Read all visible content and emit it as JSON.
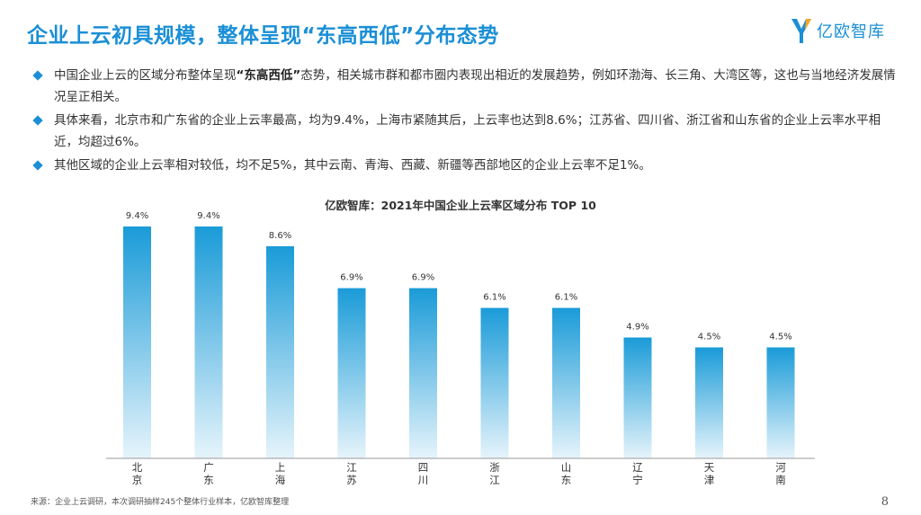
{
  "header": {
    "title": "企业上云初具规模，整体呈现“东高西低”分布态势",
    "logo_text": "亿欧智库"
  },
  "bullets": [
    {
      "pre": "中国企业上云的区域分布整体呈现",
      "bold": "“东高西低”",
      "post": "态势，相关城市群和都市圈内表现出相近的发展趋势，例如环渤海、长三角、大湾区等，这也与当地经济发展情况呈正相关。"
    },
    {
      "pre": "具体来看，北京市和广东省的企业上云率最高，均为9.4%，上海市紧随其后，上云率也达到8.6%；江苏省、四川省、浙江省和山东省的企业上云率水平相近，均超过6%。",
      "bold": "",
      "post": ""
    },
    {
      "pre": "其他区域的企业上云率相对较低，均不足5%，其中云南、青海、西藏、新疆等西部地区的企业上云率不足1%。",
      "bold": "",
      "post": ""
    }
  ],
  "chart_data": {
    "type": "bar",
    "title": "亿欧智库：2021年中国企业上云率区域分布 TOP 10",
    "categories": [
      "北京",
      "广东",
      "上海",
      "江苏",
      "四川",
      "浙江",
      "山东",
      "辽宁",
      "天津",
      "河南"
    ],
    "values": [
      9.4,
      9.4,
      8.6,
      6.9,
      6.9,
      6.1,
      6.1,
      4.9,
      4.5,
      4.5
    ],
    "value_labels": [
      "9.4%",
      "9.4%",
      "8.6%",
      "6.9%",
      "6.9%",
      "6.1%",
      "6.1%",
      "4.9%",
      "4.5%",
      "4.5%"
    ],
    "unit": "%",
    "ylim": [
      0,
      9.4
    ],
    "bar_color_top": "#1a9bd8",
    "bar_color_bottom": "#e6f4fb",
    "grid": false,
    "legend": "none"
  },
  "footer": {
    "source": "来源：企业上云调研，本次调研抽样245个整体行业样本，亿欧智库整理",
    "page": "8"
  },
  "colors": {
    "accent": "#1a8fd6",
    "axis": "#999999"
  }
}
